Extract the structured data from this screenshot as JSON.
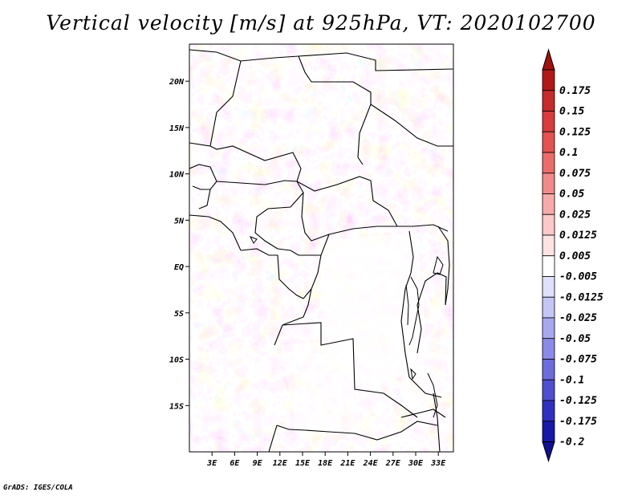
{
  "chart_data": {
    "type": "heatmap",
    "title": "Vertical velocity [m/s] at 925hPa, VT: 2020102700",
    "variable": "Vertical velocity",
    "units": "m/s",
    "level": "925hPa",
    "valid_time": "2020102700",
    "lon_range": [
      0,
      35
    ],
    "lat_range": [
      -20,
      24
    ],
    "x_ticks": [
      {
        "lon": 3,
        "label": "3E"
      },
      {
        "lon": 6,
        "label": "6E"
      },
      {
        "lon": 9,
        "label": "9E"
      },
      {
        "lon": 12,
        "label": "12E"
      },
      {
        "lon": 15,
        "label": "15E"
      },
      {
        "lon": 18,
        "label": "18E"
      },
      {
        "lon": 21,
        "label": "21E"
      },
      {
        "lon": 24,
        "label": "24E"
      },
      {
        "lon": 27,
        "label": "27E"
      },
      {
        "lon": 30,
        "label": "30E"
      },
      {
        "lon": 33,
        "label": "33E"
      }
    ],
    "y_ticks": [
      {
        "lat": 20,
        "label": "20N"
      },
      {
        "lat": 15,
        "label": "15N"
      },
      {
        "lat": 10,
        "label": "10N"
      },
      {
        "lat": 5,
        "label": "5N"
      },
      {
        "lat": 0,
        "label": "EQ"
      },
      {
        "lat": -5,
        "label": "5S"
      },
      {
        "lat": -10,
        "label": "10S"
      },
      {
        "lat": -15,
        "label": "15S"
      }
    ],
    "colorbar": {
      "levels": [
        {
          "label": "0.175",
          "color": "#b21818"
        },
        {
          "label": "0.15",
          "color": "#c62a2a"
        },
        {
          "label": "0.125",
          "color": "#d83c3c"
        },
        {
          "label": "0.1",
          "color": "#e45252"
        },
        {
          "label": "0.075",
          "color": "#ec6c6c"
        },
        {
          "label": "0.05",
          "color": "#f28a8a"
        },
        {
          "label": "0.025",
          "color": "#f8aaaa"
        },
        {
          "label": "0.0125",
          "color": "#fcc8c8"
        },
        {
          "label": "0.005",
          "color": "#fde2e2"
        },
        {
          "label": "-0.005",
          "color": "#ffffff"
        },
        {
          "label": "-0.0125",
          "color": "#e0e0fc"
        },
        {
          "label": "-0.025",
          "color": "#c6c6f6"
        },
        {
          "label": "-0.05",
          "color": "#a8a8f0"
        },
        {
          "label": "-0.075",
          "color": "#8a8ae8"
        },
        {
          "label": "-0.1",
          "color": "#6c6cdc"
        },
        {
          "label": "-0.125",
          "color": "#4e4ed0"
        },
        {
          "label": "-0.175",
          "color": "#3030c0"
        },
        {
          "label": "-0.2",
          "color": "#1818a8"
        }
      ],
      "top_color": "#a01010",
      "bottom_color": "#101090"
    }
  },
  "footer": {
    "credit": "GrADS: IGES/COLA"
  }
}
